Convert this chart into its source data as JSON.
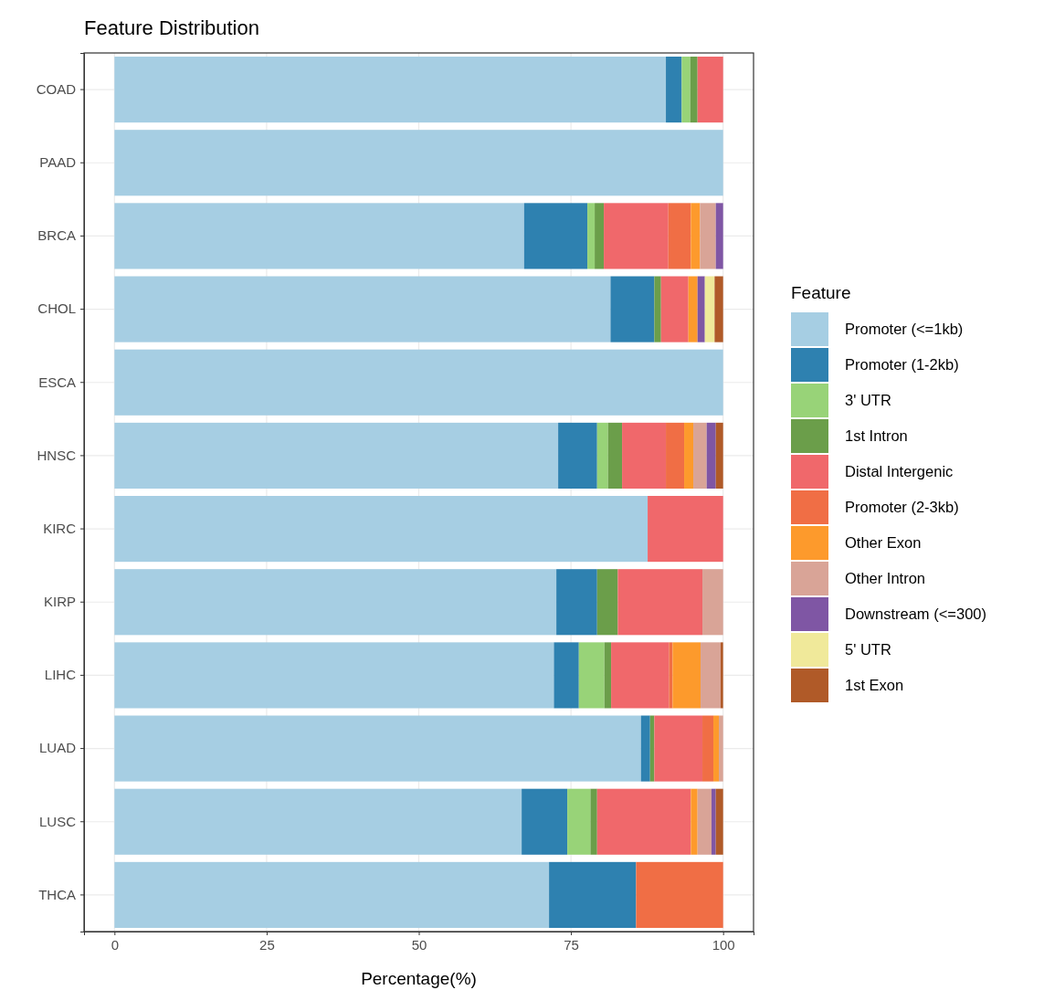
{
  "chart_data": {
    "type": "bar",
    "orientation": "horizontal",
    "stacked": true,
    "title": "Feature Distribution",
    "xlabel": "Percentage(%)",
    "legend_title": "Feature",
    "legend": "right",
    "grid": true,
    "categories": [
      "COAD",
      "PAAD",
      "BRCA",
      "CHOL",
      "ESCA",
      "HNSC",
      "KIRC",
      "KIRP",
      "LIHC",
      "LUAD",
      "LUSC",
      "THCA"
    ],
    "xlim": [
      -5,
      105
    ],
    "xticks": [
      0,
      25,
      50,
      75,
      100
    ],
    "series": [
      {
        "name": "Promoter (<=1kb)",
        "color": "#a6cee3",
        "values": [
          90.6,
          100,
          67.3,
          81.5,
          100,
          72.9,
          87.6,
          72.6,
          72.2,
          86.5,
          66.9,
          71.4
        ]
      },
      {
        "name": "Promoter (1-2kb)",
        "color": "#2e81b0",
        "values": [
          2.6,
          null,
          10.4,
          7.2,
          null,
          6.4,
          null,
          6.7,
          4.1,
          1.5,
          7.5,
          14.3
        ]
      },
      {
        "name": "3' UTR",
        "color": "#98d378",
        "values": [
          1.4,
          null,
          1.2,
          null,
          null,
          1.8,
          null,
          null,
          4.2,
          null,
          3.8,
          null
        ]
      },
      {
        "name": "1st Intron",
        "color": "#6b9e4a",
        "values": [
          1.2,
          null,
          1.5,
          1.1,
          null,
          2.3,
          null,
          3.4,
          1.1,
          0.7,
          1.1,
          null
        ]
      },
      {
        "name": "Distal Intergenic",
        "color": "#f0686b",
        "values": [
          4.2,
          null,
          10.6,
          4.5,
          null,
          7.2,
          12.4,
          13.9,
          9.5,
          7.9,
          15.4,
          null
        ]
      },
      {
        "name": "Promoter (2-3kb)",
        "color": "#f06e45",
        "values": [
          null,
          null,
          3.7,
          null,
          null,
          3.0,
          null,
          null,
          0.6,
          1.8,
          null,
          14.3
        ]
      },
      {
        "name": "Other Exon",
        "color": "#fd9a2c",
        "values": [
          null,
          null,
          1.5,
          1.5,
          null,
          1.5,
          null,
          null,
          4.6,
          0.9,
          1.1,
          null
        ]
      },
      {
        "name": "Other Intron",
        "color": "#d9a497",
        "values": [
          null,
          null,
          2.6,
          null,
          null,
          2.2,
          null,
          3.4,
          3.3,
          0.7,
          2.3,
          null
        ]
      },
      {
        "name": "Downstream (<=300)",
        "color": "#7f56a4",
        "values": [
          null,
          null,
          1.2,
          1.2,
          null,
          1.5,
          null,
          null,
          null,
          null,
          0.7,
          null
        ]
      },
      {
        "name": "5' UTR",
        "color": "#f0e99a",
        "values": [
          null,
          null,
          null,
          1.6,
          null,
          null,
          null,
          null,
          null,
          null,
          null,
          null
        ]
      },
      {
        "name": "1st Exon",
        "color": "#b05a28",
        "values": [
          null,
          null,
          null,
          1.4,
          null,
          1.2,
          null,
          null,
          0.4,
          null,
          1.2,
          null
        ]
      }
    ]
  }
}
